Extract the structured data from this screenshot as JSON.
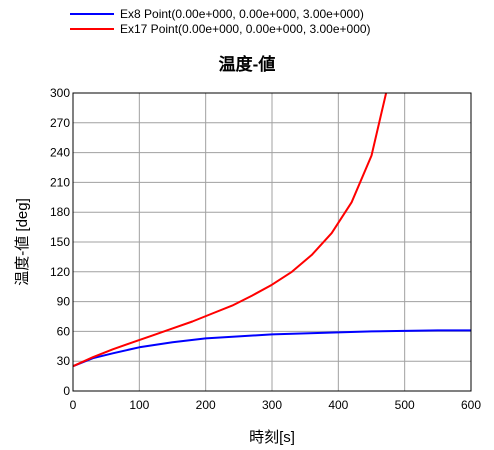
{
  "chart_data": {
    "type": "line",
    "title": "温度-値",
    "xlabel": "時刻[s]",
    "ylabel": "温度-値 [deg]",
    "xlim": [
      0,
      600
    ],
    "ylim": [
      0,
      300
    ],
    "xticks": [
      0,
      100,
      200,
      300,
      400,
      500,
      600
    ],
    "yticks": [
      0,
      30,
      60,
      90,
      120,
      150,
      180,
      210,
      240,
      270,
      300
    ],
    "grid": true,
    "legend_position": "top-left",
    "series": [
      {
        "name": "Ex8 Point(0.00e+000, 0.00e+000, 3.00e+000)",
        "color": "#0000ff",
        "x": [
          0,
          30,
          60,
          100,
          150,
          200,
          250,
          300,
          350,
          400,
          450,
          500,
          550,
          600
        ],
        "y": [
          25,
          33,
          38,
          44,
          49,
          53,
          55,
          57,
          58,
          59,
          60,
          60.5,
          61,
          61
        ]
      },
      {
        "name": "Ex17 Point(0.00e+000, 0.00e+000, 3.00e+000)",
        "color": "#ff0000",
        "x": [
          0,
          30,
          60,
          90,
          120,
          150,
          180,
          210,
          240,
          270,
          300,
          330,
          360,
          390,
          420,
          450,
          472
        ],
        "y": [
          25,
          34,
          42,
          49,
          56,
          63,
          70,
          78,
          86,
          96,
          107,
          120,
          137,
          159,
          190,
          237,
          300
        ]
      }
    ]
  }
}
